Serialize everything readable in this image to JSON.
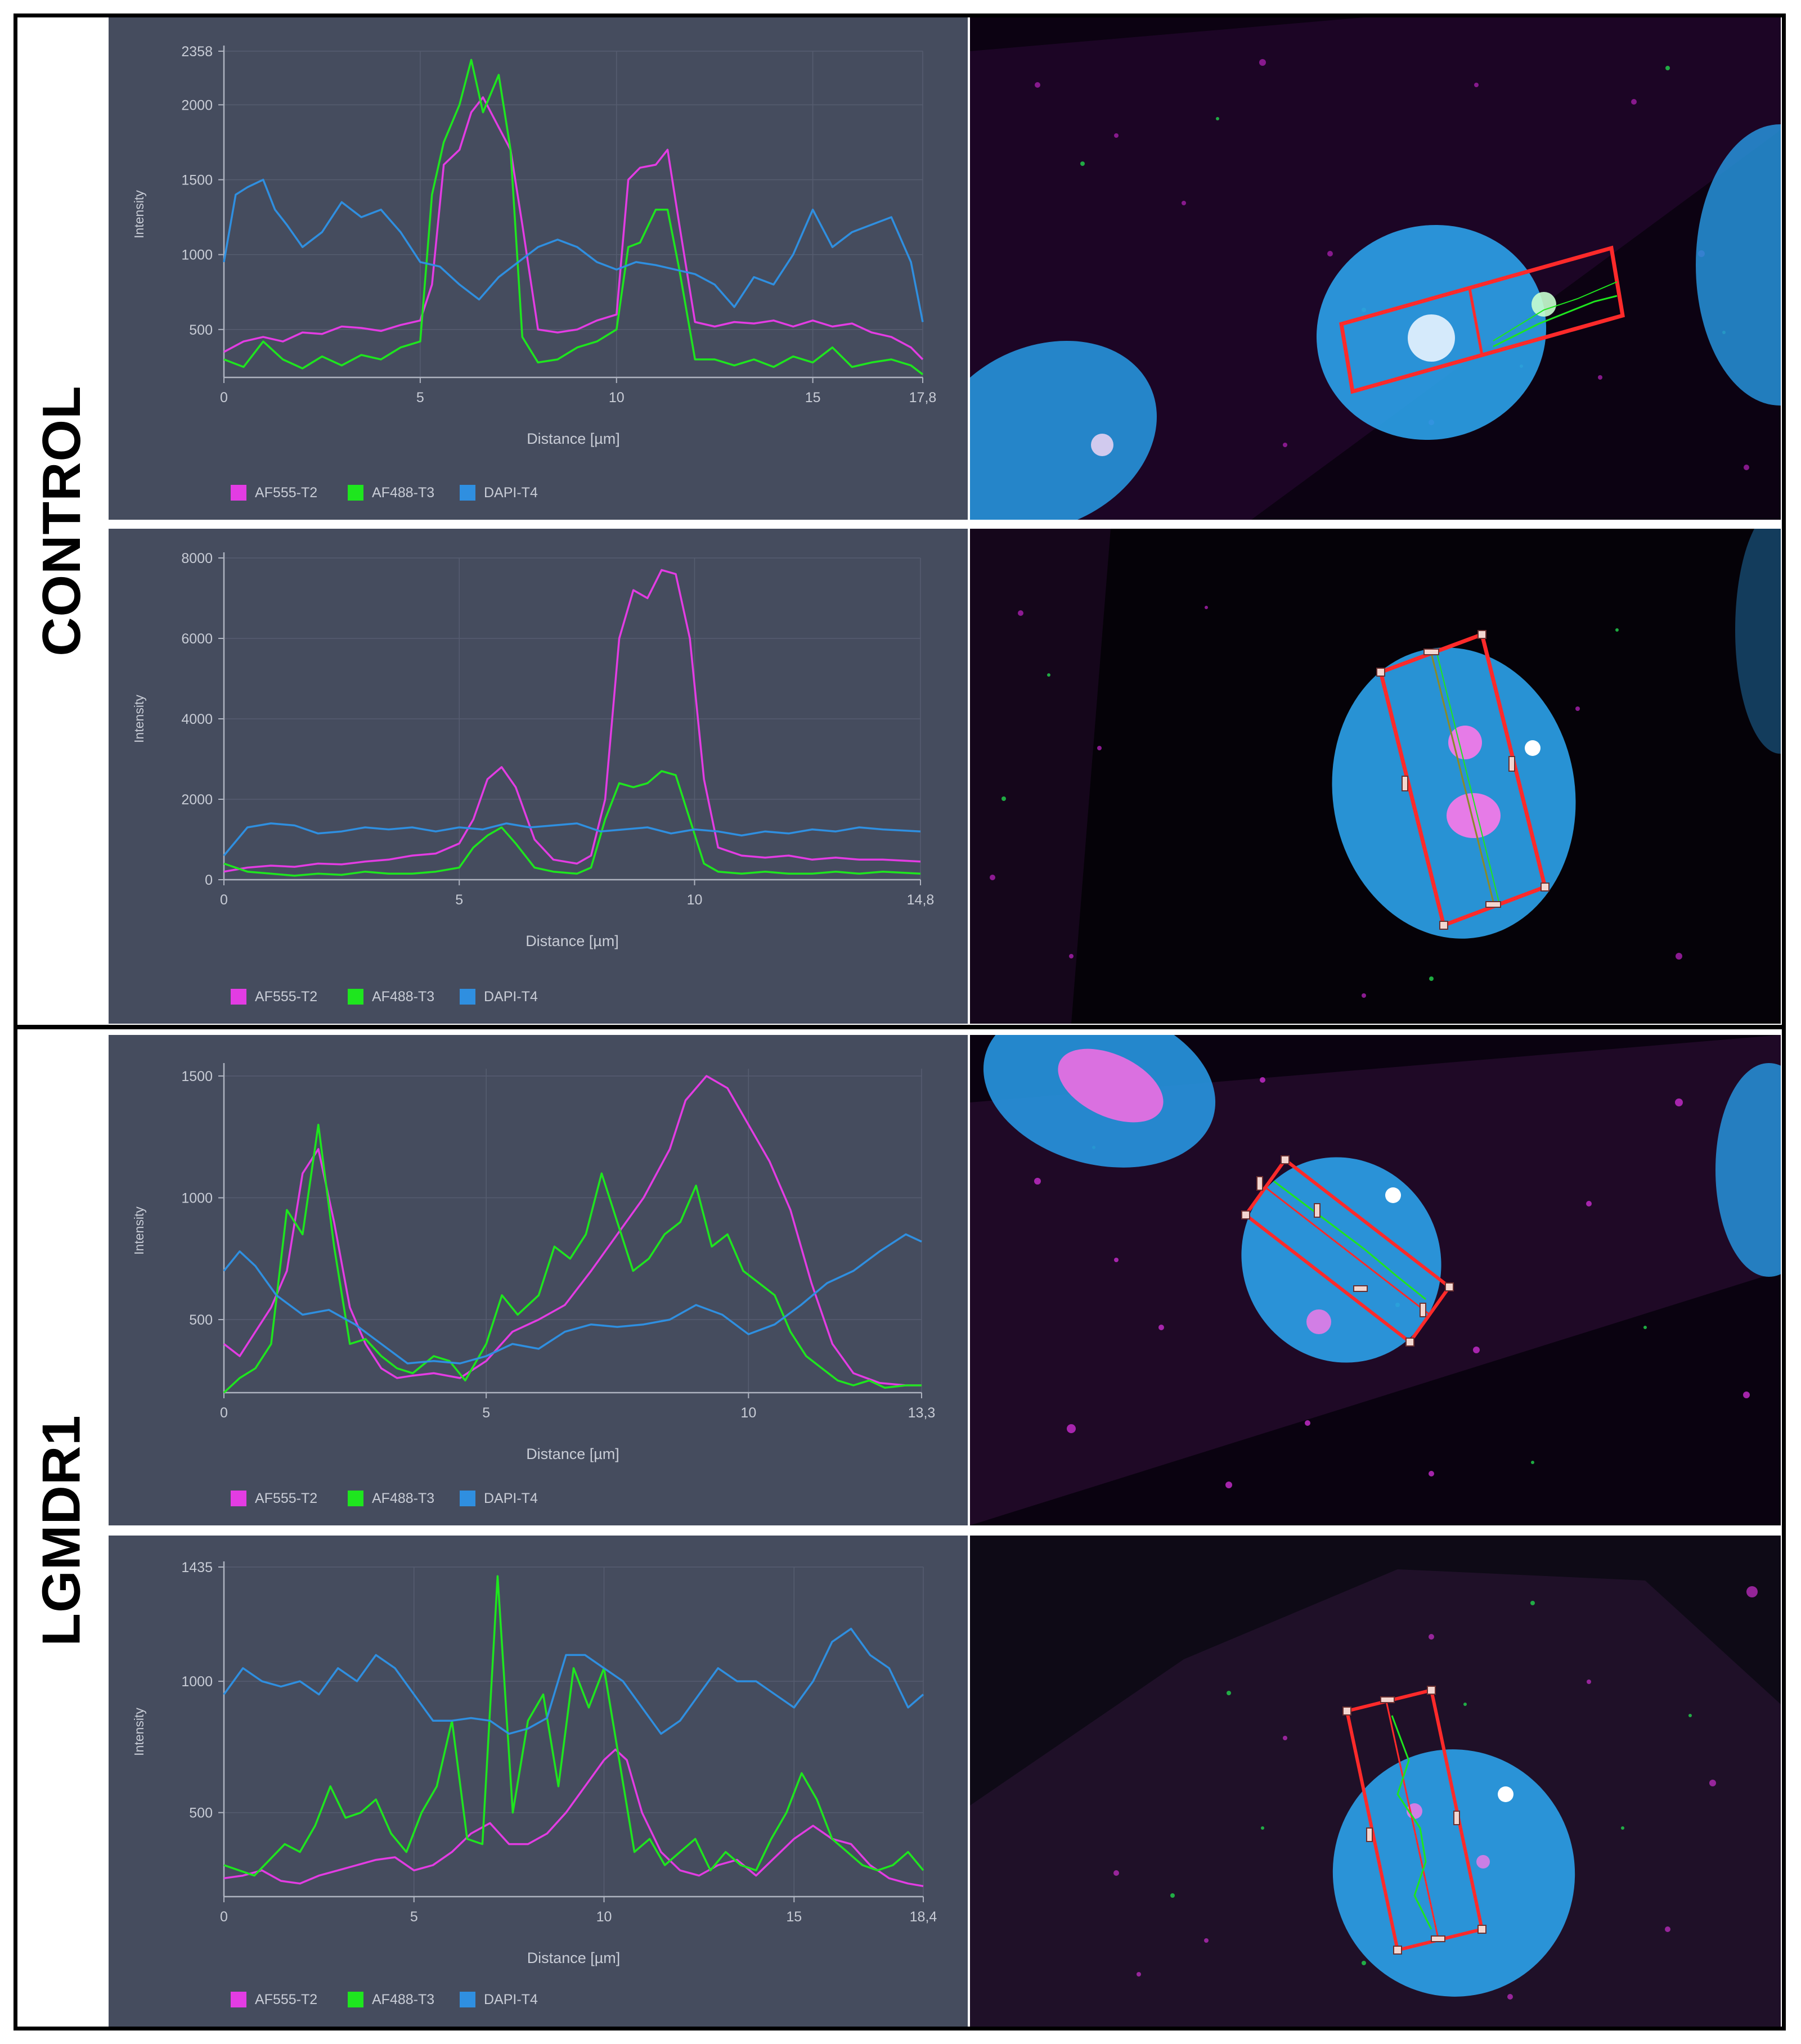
{
  "groups": [
    {
      "label": "CONTROL"
    },
    {
      "label": "LGMDR1"
    }
  ],
  "colors": {
    "panel_bg": "#454c5e",
    "magenta": "#e33ce3",
    "green": "#1ee61e",
    "blue": "#2f8fe0",
    "nucleus": "#2aa6e8",
    "roi": "#ff2a2a"
  },
  "chart_data": [
    {
      "type": "line",
      "group": "CONTROL",
      "xlabel": "Distance [µm]",
      "ylabel": "Intensity",
      "xlim": [
        0,
        17.8
      ],
      "ylim": [
        180,
        2358
      ],
      "x_ticks": [
        "0",
        "5",
        "10",
        "15",
        "17,8"
      ],
      "y_ticks": [
        "500",
        "1000",
        "1500",
        "2000",
        "2358"
      ],
      "series": [
        {
          "name": "AF555-T2",
          "color": "#e33ce3",
          "x": [
            0,
            0.5,
            1,
            1.5,
            2,
            2.5,
            3,
            3.5,
            4,
            4.5,
            5,
            5.3,
            5.6,
            6,
            6.3,
            6.6,
            7,
            7.3,
            7.6,
            8,
            8.5,
            9,
            9.5,
            10,
            10.3,
            10.6,
            11,
            11.3,
            11.6,
            12,
            12.5,
            13,
            13.5,
            14,
            14.5,
            15,
            15.5,
            16,
            16.5,
            17,
            17.5,
            17.8
          ],
          "y": [
            350,
            420,
            450,
            420,
            480,
            470,
            520,
            510,
            490,
            530,
            560,
            800,
            1600,
            1700,
            1950,
            2050,
            1850,
            1700,
            1200,
            500,
            480,
            500,
            560,
            600,
            1500,
            1580,
            1600,
            1700,
            1200,
            550,
            520,
            550,
            540,
            560,
            520,
            560,
            520,
            540,
            480,
            450,
            380,
            300
          ]
        },
        {
          "name": "AF488-T3",
          "color": "#1ee61e",
          "x": [
            0,
            0.5,
            1,
            1.5,
            2,
            2.5,
            3,
            3.5,
            4,
            4.5,
            5,
            5.3,
            5.6,
            6,
            6.3,
            6.6,
            7,
            7.3,
            7.6,
            8,
            8.5,
            9,
            9.5,
            10,
            10.3,
            10.6,
            11,
            11.3,
            11.6,
            12,
            12.5,
            13,
            13.5,
            14,
            14.5,
            15,
            15.5,
            16,
            16.5,
            17,
            17.5,
            17.8
          ],
          "y": [
            300,
            250,
            420,
            300,
            240,
            320,
            260,
            330,
            300,
            380,
            420,
            1400,
            1750,
            2000,
            2300,
            1950,
            2200,
            1700,
            450,
            280,
            300,
            380,
            420,
            500,
            1050,
            1080,
            1300,
            1300,
            900,
            300,
            300,
            260,
            300,
            250,
            320,
            280,
            380,
            250,
            280,
            300,
            260,
            200
          ]
        },
        {
          "name": "DAPI-T4",
          "color": "#2f8fe0",
          "x": [
            0,
            0.3,
            0.6,
            1,
            1.3,
            1.6,
            2,
            2.5,
            3,
            3.5,
            4,
            4.5,
            5,
            5.5,
            6,
            6.5,
            7,
            7.5,
            8,
            8.5,
            9,
            9.5,
            10,
            10.5,
            11,
            11.5,
            12,
            12.5,
            13,
            13.5,
            14,
            14.5,
            15,
            15.5,
            16,
            16.5,
            17,
            17.5,
            17.8
          ],
          "y": [
            950,
            1400,
            1450,
            1500,
            1300,
            1200,
            1050,
            1150,
            1350,
            1250,
            1300,
            1150,
            950,
            920,
            800,
            700,
            850,
            950,
            1050,
            1100,
            1050,
            950,
            900,
            950,
            930,
            900,
            870,
            800,
            650,
            850,
            800,
            1000,
            1300,
            1050,
            1150,
            1200,
            1250,
            950,
            550
          ]
        }
      ]
    },
    {
      "type": "line",
      "group": "CONTROL",
      "xlabel": "Distance [µm]",
      "ylabel": "Intensity",
      "xlim": [
        0,
        14.8
      ],
      "ylim": [
        0,
        8000
      ],
      "x_ticks": [
        "0",
        "5",
        "10",
        "14,8"
      ],
      "y_ticks": [
        "0",
        "2000",
        "4000",
        "6000",
        "8000"
      ],
      "series": [
        {
          "name": "AF555-T2",
          "color": "#e33ce3",
          "x": [
            0,
            0.5,
            1,
            1.5,
            2,
            2.5,
            3,
            3.5,
            4,
            4.5,
            5,
            5.3,
            5.6,
            5.9,
            6.2,
            6.6,
            7,
            7.5,
            7.8,
            8.1,
            8.4,
            8.7,
            9,
            9.3,
            9.6,
            9.9,
            10.2,
            10.5,
            11,
            11.5,
            12,
            12.5,
            13,
            13.5,
            14,
            14.8
          ],
          "y": [
            200,
            300,
            350,
            320,
            400,
            380,
            450,
            500,
            600,
            650,
            900,
            1500,
            2500,
            2800,
            2300,
            1000,
            500,
            400,
            600,
            2000,
            6000,
            7200,
            7000,
            7700,
            7600,
            6000,
            2500,
            800,
            600,
            550,
            600,
            500,
            550,
            500,
            500,
            450
          ]
        },
        {
          "name": "AF488-T3",
          "color": "#1ee61e",
          "x": [
            0,
            0.5,
            1,
            1.5,
            2,
            2.5,
            3,
            3.5,
            4,
            4.5,
            5,
            5.3,
            5.6,
            5.9,
            6.2,
            6.6,
            7,
            7.5,
            7.8,
            8.1,
            8.4,
            8.7,
            9,
            9.3,
            9.6,
            9.9,
            10.2,
            10.5,
            11,
            11.5,
            12,
            12.5,
            13,
            13.5,
            14,
            14.8
          ],
          "y": [
            400,
            200,
            150,
            100,
            150,
            120,
            200,
            150,
            150,
            200,
            300,
            800,
            1100,
            1300,
            900,
            300,
            200,
            150,
            300,
            1500,
            2400,
            2300,
            2400,
            2700,
            2600,
            1500,
            400,
            200,
            150,
            200,
            150,
            150,
            200,
            150,
            200,
            150
          ]
        },
        {
          "name": "DAPI-T4",
          "color": "#2f8fe0",
          "x": [
            0,
            0.5,
            1,
            1.5,
            2,
            2.5,
            3,
            3.5,
            4,
            4.5,
            5,
            5.5,
            6,
            6.5,
            7,
            7.5,
            8,
            8.5,
            9,
            9.5,
            10,
            10.5,
            11,
            11.5,
            12,
            12.5,
            13,
            13.5,
            14,
            14.8
          ],
          "y": [
            600,
            1300,
            1400,
            1350,
            1150,
            1200,
            1300,
            1250,
            1300,
            1200,
            1300,
            1250,
            1400,
            1300,
            1350,
            1400,
            1200,
            1250,
            1300,
            1150,
            1250,
            1200,
            1100,
            1200,
            1150,
            1250,
            1200,
            1300,
            1250,
            1200
          ]
        }
      ]
    },
    {
      "type": "line",
      "group": "LGMDR1",
      "xlabel": "Distance [µm]",
      "ylabel": "Intensity",
      "xlim": [
        0,
        13.3
      ],
      "ylim": [
        200,
        1530
      ],
      "x_ticks": [
        "0",
        "5",
        "10",
        "13,3"
      ],
      "y_ticks": [
        "500",
        "1000",
        "1500"
      ],
      "series": [
        {
          "name": "AF555-T2",
          "color": "#e33ce3",
          "x": [
            0,
            0.3,
            0.6,
            0.9,
            1.2,
            1.5,
            1.8,
            2.1,
            2.4,
            2.7,
            3,
            3.3,
            3.6,
            4,
            4.5,
            5,
            5.5,
            6,
            6.5,
            7,
            7.5,
            8,
            8.5,
            8.8,
            9.2,
            9.6,
            10,
            10.4,
            10.8,
            11.2,
            11.6,
            12,
            12.5,
            13,
            13.3
          ],
          "y": [
            400,
            350,
            450,
            550,
            700,
            1100,
            1200,
            900,
            550,
            400,
            300,
            260,
            270,
            280,
            260,
            330,
            450,
            500,
            560,
            700,
            850,
            1000,
            1200,
            1400,
            1500,
            1450,
            1300,
            1150,
            950,
            650,
            400,
            280,
            240,
            230,
            230
          ]
        },
        {
          "name": "AF488-T3",
          "color": "#1ee61e",
          "x": [
            0,
            0.3,
            0.6,
            0.9,
            1.2,
            1.5,
            1.8,
            2.1,
            2.4,
            2.7,
            3,
            3.3,
            3.6,
            4,
            4.3,
            4.6,
            5,
            5.3,
            5.6,
            6,
            6.3,
            6.6,
            6.9,
            7.2,
            7.5,
            7.8,
            8.1,
            8.4,
            8.7,
            9,
            9.3,
            9.6,
            9.9,
            10.2,
            10.5,
            10.8,
            11.1,
            11.4,
            11.7,
            12,
            12.3,
            12.6,
            13,
            13.3
          ],
          "y": [
            200,
            260,
            300,
            400,
            950,
            850,
            1300,
            800,
            400,
            420,
            350,
            300,
            280,
            350,
            330,
            250,
            400,
            600,
            520,
            600,
            800,
            750,
            850,
            1100,
            900,
            700,
            750,
            850,
            900,
            1050,
            800,
            850,
            700,
            650,
            600,
            450,
            350,
            300,
            250,
            230,
            250,
            220,
            230,
            230
          ]
        },
        {
          "name": "DAPI-T4",
          "color": "#2f8fe0",
          "x": [
            0,
            0.3,
            0.6,
            1,
            1.5,
            2,
            2.5,
            3,
            3.5,
            4,
            4.5,
            5,
            5.5,
            6,
            6.5,
            7,
            7.5,
            8,
            8.5,
            9,
            9.5,
            10,
            10.5,
            11,
            11.5,
            12,
            12.5,
            13,
            13.3
          ],
          "y": [
            700,
            780,
            720,
            600,
            520,
            540,
            480,
            400,
            320,
            330,
            320,
            350,
            400,
            380,
            450,
            480,
            470,
            480,
            500,
            560,
            520,
            440,
            480,
            560,
            650,
            700,
            780,
            850,
            820
          ]
        }
      ]
    },
    {
      "type": "line",
      "group": "LGMDR1",
      "xlabel": "Distance [µm]",
      "ylabel": "Intensity",
      "xlim": [
        0,
        18.4
      ],
      "ylim": [
        180,
        1435
      ],
      "x_ticks": [
        "0",
        "5",
        "10",
        "15",
        "18,4"
      ],
      "y_ticks": [
        "500",
        "1000",
        "1435"
      ],
      "series": [
        {
          "name": "AF555-T2",
          "color": "#e33ce3",
          "x": [
            0,
            0.5,
            1,
            1.5,
            2,
            2.5,
            3,
            3.5,
            4,
            4.5,
            5,
            5.5,
            6,
            6.5,
            7,
            7.5,
            8,
            8.5,
            9,
            9.5,
            10,
            10.3,
            10.6,
            11,
            11.5,
            12,
            12.5,
            13,
            13.5,
            14,
            14.5,
            15,
            15.5,
            16,
            16.5,
            17,
            17.5,
            18,
            18.4
          ],
          "y": [
            250,
            260,
            280,
            240,
            230,
            260,
            280,
            300,
            320,
            330,
            280,
            300,
            350,
            420,
            460,
            380,
            380,
            420,
            500,
            600,
            700,
            740,
            700,
            500,
            350,
            280,
            260,
            300,
            320,
            260,
            330,
            400,
            450,
            400,
            380,
            300,
            250,
            230,
            220
          ]
        },
        {
          "name": "AF488-T3",
          "color": "#1ee61e",
          "x": [
            0,
            0.4,
            0.8,
            1.2,
            1.6,
            2,
            2.4,
            2.8,
            3.2,
            3.6,
            4,
            4.4,
            4.8,
            5.2,
            5.6,
            6,
            6.4,
            6.8,
            7.2,
            7.6,
            8,
            8.4,
            8.8,
            9.2,
            9.6,
            10,
            10.4,
            10.8,
            11.2,
            11.6,
            12,
            12.4,
            12.8,
            13.2,
            13.6,
            14,
            14.4,
            14.8,
            15.2,
            15.6,
            16,
            16.4,
            16.8,
            17.2,
            17.6,
            18,
            18.4
          ],
          "y": [
            300,
            280,
            260,
            320,
            380,
            350,
            450,
            600,
            480,
            500,
            550,
            420,
            350,
            500,
            600,
            850,
            400,
            380,
            1400,
            500,
            850,
            950,
            600,
            1050,
            900,
            1050,
            700,
            350,
            400,
            300,
            350,
            400,
            280,
            350,
            300,
            280,
            400,
            500,
            650,
            550,
            400,
            350,
            300,
            280,
            300,
            350,
            280
          ]
        },
        {
          "name": "DAPI-T4",
          "color": "#2f8fe0",
          "x": [
            0,
            0.5,
            1,
            1.5,
            2,
            2.5,
            3,
            3.5,
            4,
            4.5,
            5,
            5.5,
            6,
            6.5,
            7,
            7.5,
            8,
            8.5,
            9,
            9.5,
            10,
            10.5,
            11,
            11.5,
            12,
            12.5,
            13,
            13.5,
            14,
            14.5,
            15,
            15.5,
            16,
            16.5,
            17,
            17.5,
            18,
            18.4
          ],
          "y": [
            950,
            1050,
            1000,
            980,
            1000,
            950,
            1050,
            1000,
            1100,
            1050,
            950,
            850,
            850,
            860,
            850,
            800,
            820,
            860,
            1100,
            1100,
            1050,
            1000,
            900,
            800,
            850,
            950,
            1050,
            1000,
            1000,
            950,
            900,
            1000,
            1150,
            1200,
            1100,
            1050,
            900,
            950
          ]
        }
      ]
    }
  ],
  "micrographs": [
    {
      "group": "CONTROL",
      "content": "nucleus with rectangular line-profile ROI"
    },
    {
      "group": "CONTROL",
      "content": "nucleus with rectangular line-profile ROI"
    },
    {
      "group": "LGMDR1",
      "content": "nucleus with rectangular line-profile ROI"
    },
    {
      "group": "LGMDR1",
      "content": "nucleus with rectangular line-profile ROI"
    }
  ]
}
